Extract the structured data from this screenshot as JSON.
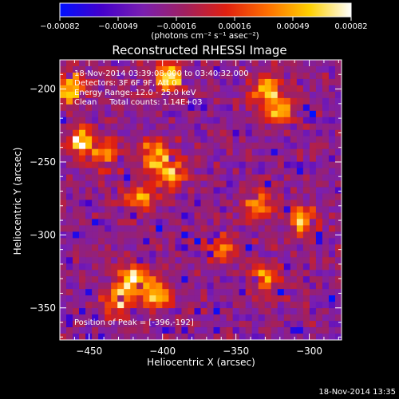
{
  "chart_data": {
    "type": "heatmap",
    "title": "Reconstructed RHESSI Image",
    "xlabel": "Heliocentric X (arcsec)",
    "ylabel": "Heliocentric Y (arcsec)",
    "xlim": [
      -470,
      -278
    ],
    "ylim": [
      -372,
      -180
    ],
    "x_ticks": [
      -450,
      -400,
      -350,
      -300
    ],
    "x_tick_labels": [
      "−450",
      "−400",
      "−350",
      "−300"
    ],
    "y_ticks": [
      -350,
      -300,
      -250,
      -200
    ],
    "y_tick_labels": [
      "−350",
      "−300",
      "−250",
      "−200"
    ],
    "colorbar": {
      "range": [
        -0.00082,
        0.00082
      ],
      "tick_labels": [
        "−0.00082",
        "−0.00049",
        "−0.00016",
        "0.00016",
        "0.00049",
        "0.00082"
      ],
      "unit_label": "(photons cm⁻² s⁻¹ asec⁻²)",
      "colors": [
        "#0010ff",
        "#4400cc",
        "#7a1fb0",
        "#a02060",
        "#e02010",
        "#ff7000",
        "#ffd000",
        "#ffffff"
      ]
    },
    "annotations": [
      "18-Nov-2014 03:39:08.000 to 03:40:32.000",
      "Detectors: 3F 6F 9F, Att 0",
      "Energy Range: 12.0 - 25.0 keV",
      "Clean     Total counts: 1.14E+03"
    ],
    "peak_label": "Position of Peak = [-396,-192]",
    "peak_position": [
      -396,
      -192
    ],
    "bright_regions": [
      {
        "x": -462,
        "y": -200,
        "level": 0.95
      },
      {
        "x": -455,
        "y": -235,
        "level": 0.85
      },
      {
        "x": -440,
        "y": -245,
        "level": 0.7
      },
      {
        "x": -405,
        "y": -245,
        "level": 0.9
      },
      {
        "x": -395,
        "y": -258,
        "level": 0.8
      },
      {
        "x": -415,
        "y": -275,
        "level": 0.65
      },
      {
        "x": -420,
        "y": -330,
        "level": 0.9
      },
      {
        "x": -405,
        "y": -340,
        "level": 0.85
      },
      {
        "x": -430,
        "y": -345,
        "level": 0.75
      },
      {
        "x": -396,
        "y": -192,
        "level": 1.0
      },
      {
        "x": -330,
        "y": -200,
        "level": 0.85
      },
      {
        "x": -320,
        "y": -215,
        "level": 0.7
      },
      {
        "x": -335,
        "y": -280,
        "level": 0.7
      },
      {
        "x": -305,
        "y": -290,
        "level": 0.75
      },
      {
        "x": -330,
        "y": -330,
        "level": 0.65
      },
      {
        "x": -360,
        "y": -310,
        "level": 0.55
      }
    ]
  },
  "footer": {
    "timestamp": "18-Nov-2014 13:35"
  }
}
